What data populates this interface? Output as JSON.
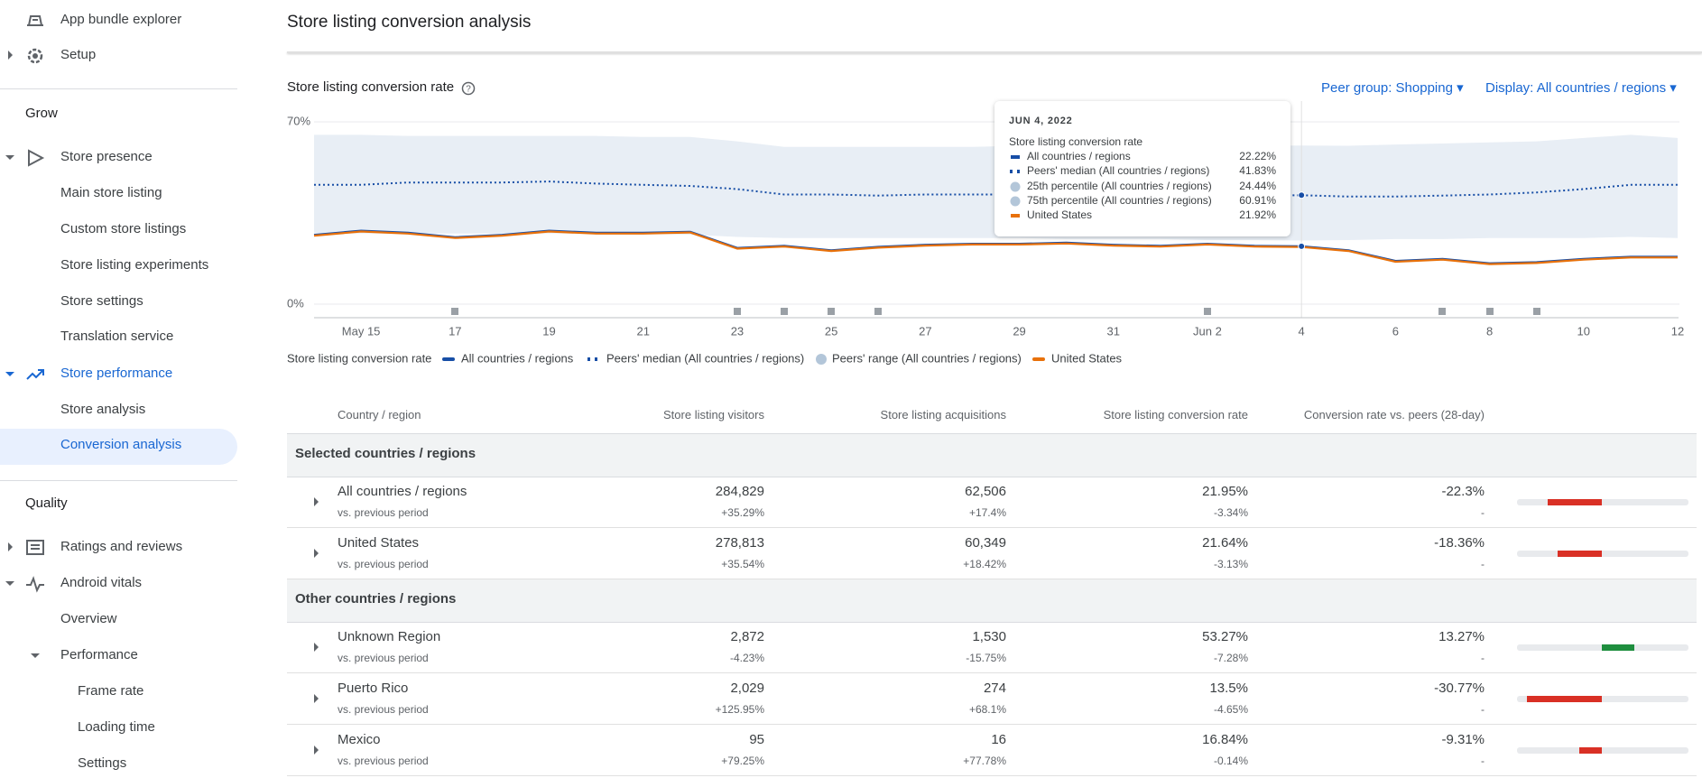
{
  "sidebar": [
    "App bundle explorer",
    "Setup",
    "Grow",
    "Store presence",
    "Main store listing",
    "Custom store listings",
    "Store listing experiments",
    "Store settings",
    "Translation service",
    "Store performance",
    "Store analysis",
    "Conversion analysis",
    "Quality",
    "Ratings and reviews",
    "Android vitals",
    "Overview",
    "Performance",
    "Frame rate",
    "Loading time",
    "Settings"
  ],
  "header": {
    "title": "Store listing conversion analysis"
  },
  "controls": [
    "Peer group: Shopping",
    "Display: All countries / regions"
  ],
  "chart_data": {
    "type": "line",
    "title": "Store listing conversion rate",
    "legend_title": "Store listing conversion rate",
    "categories": [
      null,
      "May 15",
      null,
      "17",
      null,
      "19",
      null,
      "21",
      null,
      "23",
      null,
      "25",
      null,
      "27",
      null,
      "29",
      null,
      "31",
      null,
      "Jun 2",
      null,
      "4",
      null,
      "6",
      null,
      "8",
      null,
      "10",
      null,
      "12"
    ],
    "ylim": [
      0,
      70
    ],
    "yticks": [
      {
        "value": 0,
        "label": "0%"
      },
      {
        "value": 70,
        "label": "70%"
      }
    ],
    "grid": true,
    "series": [
      {
        "name": "All countries / regions",
        "color": "#174ea6",
        "style": "solid",
        "values": [
          26.6,
          28.2,
          27.4,
          25.7,
          26.6,
          28.2,
          27.4,
          27.4,
          27.8,
          21.6,
          22.4,
          20.7,
          22.0,
          22.8,
          23.2,
          23.2,
          23.6,
          22.8,
          22.4,
          23.2,
          22.4,
          22.22,
          20.7,
          16.6,
          17.4,
          15.7,
          16.1,
          17.4,
          18.2,
          18.2
        ]
      },
      {
        "name": "Peers' median (All countries / regions)",
        "color": "#174ea6",
        "style": "dotted",
        "values": [
          45.8,
          45.8,
          46.7,
          46.7,
          46.7,
          47.1,
          46.3,
          45.8,
          45.4,
          44.2,
          42.1,
          42.1,
          41.7,
          42.1,
          42.1,
          42.1,
          42.1,
          42.1,
          42.1,
          41.7,
          41.7,
          41.83,
          41.3,
          41.3,
          41.7,
          42.1,
          42.9,
          44.2,
          45.8,
          45.8
        ]
      },
      {
        "name": "Peers' range (All countries / regions)",
        "color": "#e8eef5",
        "style": "band",
        "low": [
          27.1,
          27.1,
          27.1,
          27.1,
          27.1,
          27.1,
          27.1,
          27.1,
          26.7,
          25.8,
          25.4,
          25.4,
          25.4,
          25.4,
          25.4,
          25.4,
          25.0,
          25.0,
          25.0,
          24.6,
          24.6,
          24.44,
          24.6,
          25.0,
          25.0,
          25.4,
          25.4,
          25.4,
          25.8,
          25.4
        ],
        "high": [
          65,
          65,
          64.6,
          64.6,
          64.6,
          64.6,
          64.6,
          64.2,
          64.2,
          62.5,
          60.4,
          60.4,
          60.4,
          60.4,
          60.4,
          60.8,
          60.8,
          60.8,
          60.8,
          60.8,
          60.8,
          60.91,
          60.8,
          61.3,
          61.7,
          62.1,
          62.5,
          63.8,
          65,
          63.8
        ]
      },
      {
        "name": "United States",
        "color": "#e8710a",
        "style": "solid",
        "values": [
          26.3,
          27.9,
          27.1,
          25.4,
          26.3,
          27.9,
          27.1,
          27.1,
          27.5,
          21.3,
          22.1,
          20.4,
          21.7,
          22.5,
          22.9,
          22.9,
          23.3,
          22.5,
          22.1,
          22.9,
          22.1,
          21.92,
          20.4,
          16.3,
          17.1,
          15.4,
          15.8,
          17.1,
          17.9,
          17.9
        ]
      }
    ],
    "tooltip": {
      "date": "JUN 4, 2022",
      "title": "Store listing conversion rate",
      "rows": [
        {
          "label": "All countries / regions",
          "value": "22.22%"
        },
        {
          "label": "Peers' median (All countries / regions)",
          "value": "41.83%"
        },
        {
          "label": "25th percentile (All countries / regions)",
          "value": "24.44%"
        },
        {
          "label": "75th percentile (All countries / regions)",
          "value": "60.91%"
        },
        {
          "label": "United States",
          "value": "21.92%"
        }
      ]
    }
  },
  "table": {
    "columns": [
      "Country / region",
      "Store listing visitors",
      "Store listing acquisitions",
      "Store listing conversion rate",
      "Conversion rate vs. peers (28-day)"
    ],
    "sections": [
      {
        "title": "Selected countries / regions",
        "rows": [
          {
            "country": "All countries / regions",
            "comparison": "vs. previous period",
            "cells": [
              {
                "value": "284,829",
                "change": "+35.29%"
              },
              {
                "value": "62,506",
                "change": "+17.4%"
              },
              {
                "value": "21.95%",
                "change": "-3.34%"
              }
            ],
            "vs_peers": {
              "value": -22.3,
              "label": "-22.3%"
            },
            "vs_peers_change": "-"
          },
          {
            "country": "United States",
            "comparison": "vs. previous period",
            "cells": [
              {
                "value": "278,813",
                "change": "+35.54%"
              },
              {
                "value": "60,349",
                "change": "+18.42%"
              },
              {
                "value": "21.64%",
                "change": "-3.13%"
              }
            ],
            "vs_peers": {
              "value": -18.36,
              "label": "-18.36%"
            },
            "vs_peers_change": "-"
          }
        ]
      },
      {
        "title": "Other countries / regions",
        "rows": [
          {
            "country": "Unknown Region",
            "comparison": "vs. previous period",
            "cells": [
              {
                "value": "2,872",
                "change": "-4.23%"
              },
              {
                "value": "1,530",
                "change": "-15.75%"
              },
              {
                "value": "53.27%",
                "change": "-7.28%"
              }
            ],
            "vs_peers": {
              "value": 13.27,
              "label": "13.27%"
            },
            "vs_peers_change": "-"
          },
          {
            "country": "Puerto Rico",
            "comparison": "vs. previous period",
            "cells": [
              {
                "value": "2,029",
                "change": "+125.95%"
              },
              {
                "value": "274",
                "change": "+68.1%"
              },
              {
                "value": "13.5%",
                "change": "-4.65%"
              }
            ],
            "vs_peers": {
              "value": -30.77,
              "label": "-30.77%"
            },
            "vs_peers_change": "-"
          },
          {
            "country": "Mexico",
            "comparison": "vs. previous period",
            "cells": [
              {
                "value": "95",
                "change": "+79.25%"
              },
              {
                "value": "16",
                "change": "+77.78%"
              },
              {
                "value": "16.84%",
                "change": "-0.14%"
              }
            ],
            "vs_peers": {
              "value": -9.31,
              "label": "-9.31%"
            },
            "vs_peers_change": "-"
          }
        ]
      }
    ]
  }
}
